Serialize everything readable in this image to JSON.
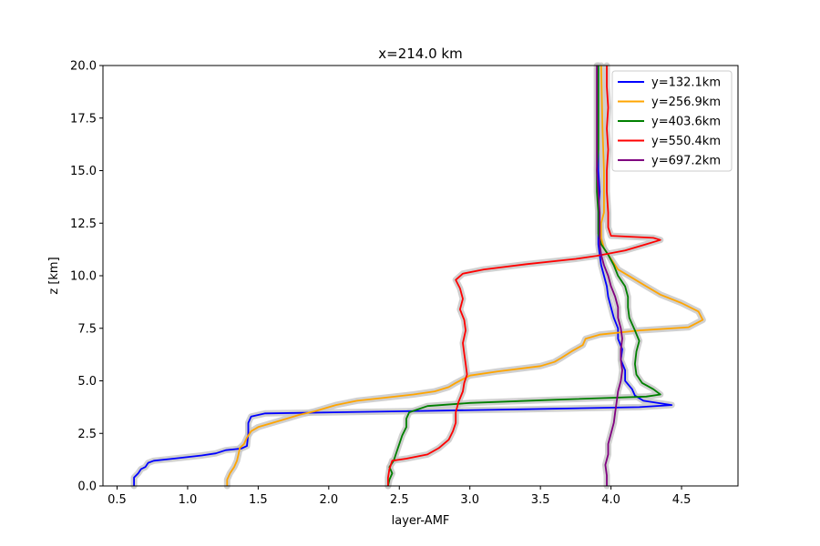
{
  "chart_data": {
    "type": "line",
    "title": "x=214.0 km",
    "xlabel": "layer-AMF",
    "ylabel": "z [km]",
    "xlim": [
      0.4,
      4.9
    ],
    "ylim": [
      0,
      20
    ],
    "xticks": [
      0.5,
      1.0,
      1.5,
      2.0,
      2.5,
      3.0,
      3.5,
      4.0,
      4.5
    ],
    "xtick_labels": [
      "0.5",
      "1.0",
      "1.5",
      "2.0",
      "2.5",
      "3.0",
      "3.5",
      "4.0",
      "4.5"
    ],
    "yticks": [
      0,
      2.5,
      5,
      7.5,
      10,
      12.5,
      15,
      17.5,
      20
    ],
    "ytick_labels": [
      "0.0",
      "2.5",
      "5.0",
      "7.5",
      "10.0",
      "12.5",
      "15.0",
      "17.5",
      "20.0"
    ],
    "grid": false,
    "legend_position": "top-right",
    "uncertainty_band_color": "#c8c8c8",
    "series": [
      {
        "name": "y=132.1km",
        "color": "#0000ff",
        "points": [
          [
            0.62,
            0
          ],
          [
            0.62,
            0.4
          ],
          [
            0.65,
            0.6
          ],
          [
            0.67,
            0.8
          ],
          [
            0.7,
            0.9
          ],
          [
            0.72,
            1.1
          ],
          [
            0.76,
            1.2
          ],
          [
            0.9,
            1.3
          ],
          [
            1.1,
            1.45
          ],
          [
            1.2,
            1.55
          ],
          [
            1.27,
            1.7
          ],
          [
            1.38,
            1.78
          ],
          [
            1.42,
            1.9
          ],
          [
            1.43,
            2.5
          ],
          [
            1.43,
            3.0
          ],
          [
            1.45,
            3.3
          ],
          [
            1.55,
            3.45
          ],
          [
            2.5,
            3.55
          ],
          [
            3.4,
            3.65
          ],
          [
            4.2,
            3.75
          ],
          [
            4.43,
            3.85
          ],
          [
            4.23,
            4.05
          ],
          [
            4.17,
            4.3
          ],
          [
            4.15,
            4.6
          ],
          [
            4.1,
            5.0
          ],
          [
            4.1,
            5.5
          ],
          [
            4.07,
            6.0
          ],
          [
            4.08,
            6.5
          ],
          [
            4.05,
            7.0
          ],
          [
            4.05,
            7.5
          ],
          [
            4.02,
            8.0
          ],
          [
            4.0,
            8.5
          ],
          [
            3.98,
            9.0
          ],
          [
            3.97,
            9.5
          ],
          [
            3.95,
            10.0
          ],
          [
            3.93,
            10.5
          ],
          [
            3.92,
            11.0
          ],
          [
            3.91,
            11.5
          ],
          [
            3.91,
            12.0
          ],
          [
            3.91,
            13.0
          ],
          [
            3.92,
            14.0
          ],
          [
            3.91,
            15.0
          ],
          [
            3.91,
            16.0
          ],
          [
            3.91,
            17.0
          ],
          [
            3.91,
            18.0
          ],
          [
            3.91,
            19.0
          ],
          [
            3.91,
            20.0
          ]
        ]
      },
      {
        "name": "y=256.9km",
        "color": "#ffa500",
        "points": [
          [
            1.28,
            0
          ],
          [
            1.28,
            0.3
          ],
          [
            1.3,
            0.6
          ],
          [
            1.33,
            0.9
          ],
          [
            1.35,
            1.2
          ],
          [
            1.36,
            1.5
          ],
          [
            1.37,
            1.8
          ],
          [
            1.4,
            2.0
          ],
          [
            1.42,
            2.3
          ],
          [
            1.45,
            2.6
          ],
          [
            1.5,
            2.8
          ],
          [
            1.6,
            3.0
          ],
          [
            1.7,
            3.2
          ],
          [
            1.8,
            3.4
          ],
          [
            1.9,
            3.55
          ],
          [
            2.05,
            3.85
          ],
          [
            2.2,
            4.05
          ],
          [
            2.4,
            4.2
          ],
          [
            2.6,
            4.35
          ],
          [
            2.75,
            4.5
          ],
          [
            2.85,
            4.7
          ],
          [
            2.9,
            4.9
          ],
          [
            3.0,
            5.25
          ],
          [
            3.2,
            5.45
          ],
          [
            3.5,
            5.7
          ],
          [
            3.6,
            5.9
          ],
          [
            3.65,
            6.1
          ],
          [
            3.72,
            6.4
          ],
          [
            3.8,
            6.7
          ],
          [
            3.82,
            7.0
          ],
          [
            3.92,
            7.2
          ],
          [
            4.2,
            7.4
          ],
          [
            4.55,
            7.55
          ],
          [
            4.65,
            7.9
          ],
          [
            4.62,
            8.3
          ],
          [
            4.5,
            8.7
          ],
          [
            4.35,
            9.1
          ],
          [
            4.25,
            9.5
          ],
          [
            4.15,
            9.9
          ],
          [
            4.05,
            10.3
          ],
          [
            4.0,
            10.8
          ],
          [
            3.95,
            11.3
          ],
          [
            3.93,
            11.8
          ],
          [
            3.93,
            12.5
          ],
          [
            3.95,
            13.0
          ],
          [
            3.95,
            15.0
          ],
          [
            3.94,
            17.0
          ],
          [
            3.93,
            20.0
          ]
        ]
      },
      {
        "name": "y=403.6km",
        "color": "#008000",
        "points": [
          [
            2.42,
            0
          ],
          [
            2.43,
            0.3
          ],
          [
            2.45,
            0.6
          ],
          [
            2.43,
            0.9
          ],
          [
            2.46,
            1.2
          ],
          [
            2.48,
            1.6
          ],
          [
            2.5,
            2.0
          ],
          [
            2.52,
            2.4
          ],
          [
            2.55,
            2.8
          ],
          [
            2.55,
            3.2
          ],
          [
            2.57,
            3.5
          ],
          [
            2.7,
            3.8
          ],
          [
            3.0,
            3.95
          ],
          [
            3.6,
            4.1
          ],
          [
            4.25,
            4.25
          ],
          [
            4.35,
            4.35
          ],
          [
            4.3,
            4.6
          ],
          [
            4.22,
            4.9
          ],
          [
            4.18,
            5.3
          ],
          [
            4.17,
            5.8
          ],
          [
            4.18,
            6.4
          ],
          [
            4.2,
            6.9
          ],
          [
            4.17,
            7.4
          ],
          [
            4.13,
            8.0
          ],
          [
            4.12,
            8.5
          ],
          [
            4.12,
            9.0
          ],
          [
            4.1,
            9.5
          ],
          [
            4.05,
            10.0
          ],
          [
            4.02,
            10.5
          ],
          [
            3.98,
            11.0
          ],
          [
            3.93,
            11.5
          ],
          [
            3.91,
            12.0
          ],
          [
            3.91,
            13.0
          ],
          [
            3.9,
            14.0
          ],
          [
            3.9,
            15.0
          ],
          [
            3.91,
            16.0
          ],
          [
            3.91,
            17.0
          ],
          [
            3.91,
            18.0
          ],
          [
            3.91,
            19.0
          ],
          [
            3.91,
            20.0
          ]
        ]
      },
      {
        "name": "y=550.4km",
        "color": "#ff0000",
        "points": [
          [
            2.42,
            0
          ],
          [
            2.42,
            0.4
          ],
          [
            2.43,
            0.8
          ],
          [
            2.45,
            1.2
          ],
          [
            2.55,
            1.3
          ],
          [
            2.7,
            1.5
          ],
          [
            2.78,
            1.8
          ],
          [
            2.85,
            2.2
          ],
          [
            2.88,
            2.6
          ],
          [
            2.9,
            3.0
          ],
          [
            2.9,
            3.5
          ],
          [
            2.92,
            4.0
          ],
          [
            2.95,
            4.5
          ],
          [
            2.96,
            4.9
          ],
          [
            2.98,
            5.3
          ],
          [
            2.97,
            5.8
          ],
          [
            2.96,
            6.3
          ],
          [
            2.95,
            6.8
          ],
          [
            2.97,
            7.4
          ],
          [
            2.96,
            7.9
          ],
          [
            2.93,
            8.4
          ],
          [
            2.95,
            8.9
          ],
          [
            2.93,
            9.4
          ],
          [
            2.9,
            9.8
          ],
          [
            2.95,
            10.1
          ],
          [
            3.1,
            10.3
          ],
          [
            3.4,
            10.55
          ],
          [
            3.75,
            10.8
          ],
          [
            3.9,
            10.95
          ],
          [
            4.1,
            11.2
          ],
          [
            4.25,
            11.5
          ],
          [
            4.35,
            11.7
          ],
          [
            4.3,
            11.8
          ],
          [
            4.0,
            11.9
          ],
          [
            3.98,
            12.3
          ],
          [
            3.98,
            13.0
          ],
          [
            3.97,
            14.0
          ],
          [
            3.97,
            15.0
          ],
          [
            3.98,
            16.0
          ],
          [
            3.97,
            17.0
          ],
          [
            3.98,
            18.0
          ],
          [
            3.97,
            19.0
          ],
          [
            3.97,
            20.0
          ]
        ]
      },
      {
        "name": "y=697.2km",
        "color": "#800080",
        "points": [
          [
            3.97,
            0
          ],
          [
            3.97,
            0.5
          ],
          [
            3.96,
            1.0
          ],
          [
            3.98,
            1.5
          ],
          [
            3.98,
            2.0
          ],
          [
            4.0,
            2.5
          ],
          [
            4.02,
            3.0
          ],
          [
            4.03,
            3.5
          ],
          [
            4.04,
            4.0
          ],
          [
            4.05,
            4.5
          ],
          [
            4.07,
            5.0
          ],
          [
            4.08,
            5.5
          ],
          [
            4.07,
            6.0
          ],
          [
            4.07,
            6.5
          ],
          [
            4.08,
            7.0
          ],
          [
            4.07,
            7.5
          ],
          [
            4.05,
            8.0
          ],
          [
            4.05,
            8.5
          ],
          [
            4.03,
            9.0
          ],
          [
            4.0,
            9.5
          ],
          [
            3.98,
            10.0
          ],
          [
            3.95,
            10.5
          ],
          [
            3.93,
            11.0
          ],
          [
            3.92,
            11.5
          ],
          [
            3.92,
            12.0
          ],
          [
            3.92,
            13.0
          ],
          [
            3.91,
            14.0
          ],
          [
            3.9,
            15.0
          ],
          [
            3.9,
            16.0
          ],
          [
            3.9,
            17.0
          ],
          [
            3.9,
            18.0
          ],
          [
            3.9,
            19.0
          ],
          [
            3.9,
            20.0
          ]
        ]
      }
    ]
  }
}
